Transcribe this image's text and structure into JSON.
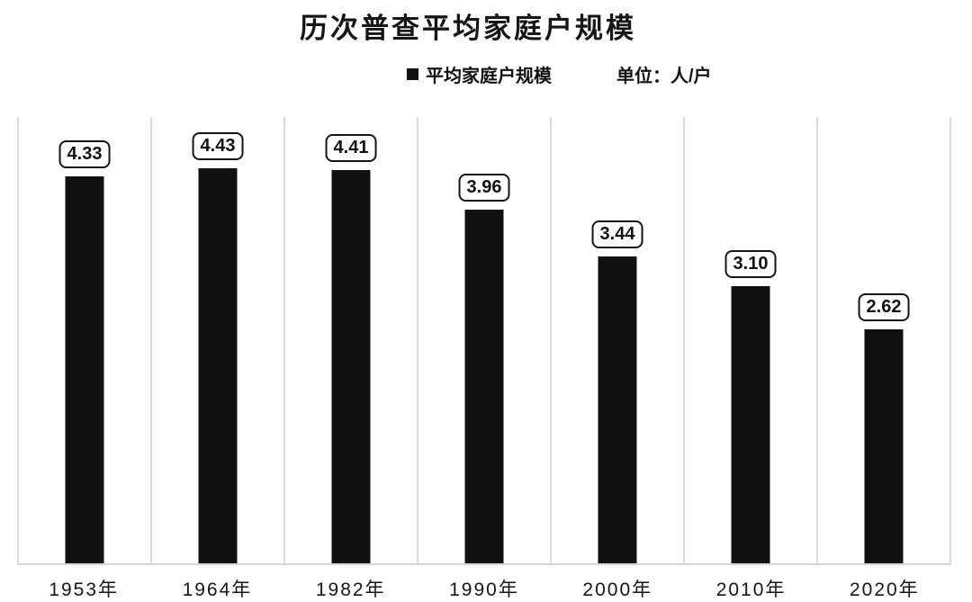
{
  "chart_data": {
    "type": "bar",
    "title": "历次普查平均家庭户规模",
    "legend": "平均家庭户规模",
    "unit_label": "单位：人/户",
    "categories": [
      "1953年",
      "1964年",
      "1982年",
      "1990年",
      "2000年",
      "2010年",
      "2020年"
    ],
    "values": [
      4.33,
      4.43,
      4.41,
      3.96,
      3.44,
      3.1,
      2.62
    ],
    "value_labels": [
      "4.33",
      "4.43",
      "4.41",
      "3.96",
      "3.44",
      "3.10",
      "2.62"
    ],
    "xlabel": "",
    "ylabel": "",
    "ylim": [
      0,
      5
    ],
    "grid": "vertical column separators only, no horizontal gridlines, no y-axis ticks",
    "legend_position": "top-center",
    "data_label_style": "rounded outlined box above each bar",
    "colors": {
      "bar": "#111111",
      "gridline": "#dadada",
      "axis_line": "#d6d6d6",
      "badge_border": "#141414",
      "background": "#ffffff",
      "text": "#111111"
    }
  }
}
